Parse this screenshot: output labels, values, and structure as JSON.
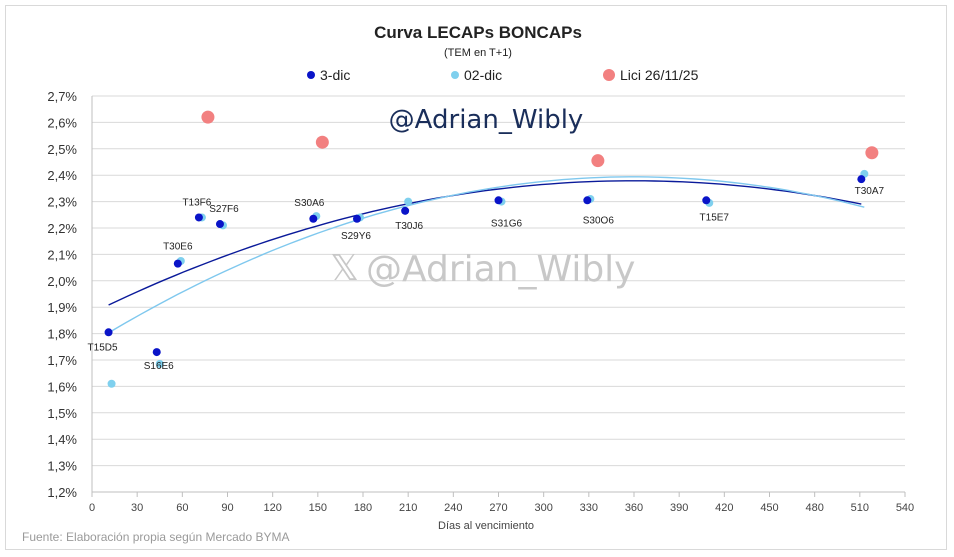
{
  "chart_data": {
    "type": "scatter",
    "title": "Curva LECAPs BONCAPs",
    "subtitle": "(TEM en T+1)",
    "xlabel": "Días al vencimiento",
    "ylabel": "",
    "xlim": [
      0,
      540
    ],
    "ylim": [
      1.2,
      2.7
    ],
    "x_ticks": [
      0,
      30,
      60,
      90,
      120,
      150,
      180,
      210,
      240,
      270,
      300,
      330,
      360,
      390,
      420,
      450,
      480,
      510,
      540
    ],
    "y_ticks": [
      1.2,
      1.3,
      1.4,
      1.5,
      1.6,
      1.7,
      1.8,
      1.9,
      2.0,
      2.1,
      2.2,
      2.3,
      2.4,
      2.5,
      2.6,
      2.7
    ],
    "y_tick_labels": [
      "1,2%",
      "1,3%",
      "1,4%",
      "1,5%",
      "1,6%",
      "1,7%",
      "1,8%",
      "1,9%",
      "2,0%",
      "2,1%",
      "2,2%",
      "2,3%",
      "2,4%",
      "2,5%",
      "2,6%",
      "2,7%"
    ],
    "grid": "horizontal",
    "legend_position": "top",
    "series": [
      {
        "name": "3-dic",
        "color": "#0a14c8",
        "points": [
          {
            "x": 11,
            "y": 1.805,
            "label": "T15D5"
          },
          {
            "x": 43,
            "y": 1.73,
            "label": "S16E6"
          },
          {
            "x": 57,
            "y": 2.065,
            "label": "T30E6"
          },
          {
            "x": 71,
            "y": 2.24,
            "label": "T13F6"
          },
          {
            "x": 85,
            "y": 2.215,
            "label": "S27F6"
          },
          {
            "x": 147,
            "y": 2.235,
            "label": "S30A6"
          },
          {
            "x": 176,
            "y": 2.235,
            "label": "S29Y6"
          },
          {
            "x": 208,
            "y": 2.265,
            "label": "T30J6"
          },
          {
            "x": 270,
            "y": 2.305,
            "label": "S31G6"
          },
          {
            "x": 329,
            "y": 2.305,
            "label": "S30O6"
          },
          {
            "x": 408,
            "y": 2.305,
            "label": "T15E7"
          },
          {
            "x": 511,
            "y": 2.385,
            "label": "T30A7"
          }
        ]
      },
      {
        "name": "02-dic",
        "color": "#7fd0ee",
        "points": [
          {
            "x": 13,
            "y": 1.61
          },
          {
            "x": 45,
            "y": 1.685
          },
          {
            "x": 59,
            "y": 2.075
          },
          {
            "x": 73,
            "y": 2.24
          },
          {
            "x": 87,
            "y": 2.21
          },
          {
            "x": 149,
            "y": 2.245
          },
          {
            "x": 178,
            "y": 2.24
          },
          {
            "x": 210,
            "y": 2.3
          },
          {
            "x": 272,
            "y": 2.3
          },
          {
            "x": 331,
            "y": 2.31
          },
          {
            "x": 410,
            "y": 2.295
          },
          {
            "x": 513,
            "y": 2.405
          }
        ]
      },
      {
        "name": "Lici 26/11/25",
        "color": "#f28080",
        "points": [
          {
            "x": 77,
            "y": 2.62
          },
          {
            "x": 153,
            "y": 2.525
          },
          {
            "x": 336,
            "y": 2.455
          },
          {
            "x": 518,
            "y": 2.485
          }
        ]
      }
    ],
    "trendlines": [
      {
        "series": "3-dic",
        "color": "#0a1a9a",
        "type": "polynomial",
        "x_from": 11,
        "x_to": 511,
        "coefficients": [
          1.8781,
          0.0027844,
          -3.87e-06
        ]
      },
      {
        "series": "02-dic",
        "color": "#7fc8ee",
        "type": "polynomial",
        "x_from": 13,
        "x_to": 513,
        "coefficients": [
          1.765,
          0.0035,
          -4.87e-06
        ]
      }
    ]
  },
  "watermarks": {
    "top": "@Adrian_Wibly",
    "center_symbol": "𝕏",
    "center": "@Adrian_Wibly"
  },
  "source_note": "Fuente: Elaboración propia según Mercado BYMA"
}
